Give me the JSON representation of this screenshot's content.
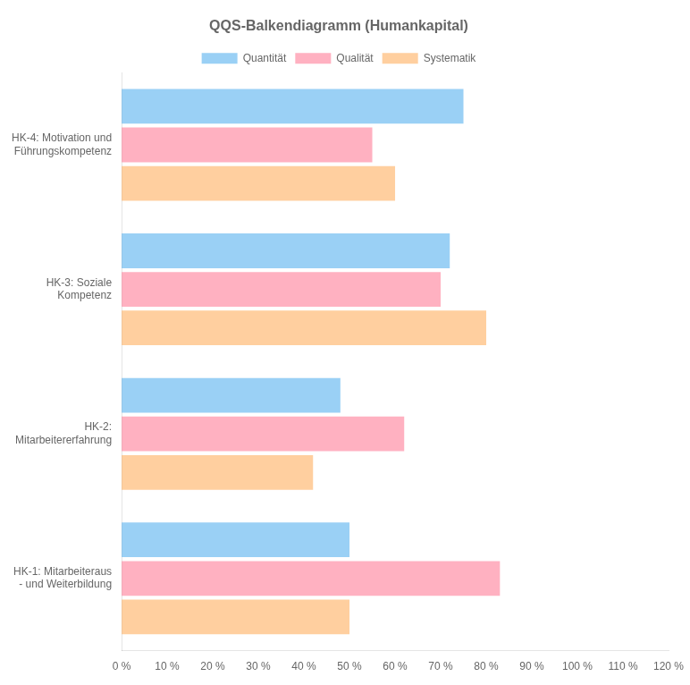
{
  "chart_data": {
    "type": "bar",
    "orientation": "horizontal",
    "title": "QQS-Balkendiagramm (Humankapital)",
    "categories": [
      "HK-1: Mitarbeiteraus\n- und Weiterbildung",
      "HK-2:\nMitarbeitererfahrung",
      "HK-3: Soziale\nKompetenz",
      "HK-4: Motivation und\nFührungskompetenz"
    ],
    "series": [
      {
        "name": "Quantität",
        "values": [
          50,
          48,
          72,
          75
        ]
      },
      {
        "name": "Qualität",
        "values": [
          83,
          62,
          70,
          55
        ]
      },
      {
        "name": "Systematik",
        "values": [
          50,
          42,
          80,
          60
        ]
      }
    ],
    "xlim": [
      0,
      120
    ],
    "xticks": [
      {
        "value": 0,
        "label": "0 %"
      },
      {
        "value": 10,
        "label": "10 %"
      },
      {
        "value": 20,
        "label": "20 %"
      },
      {
        "value": 30,
        "label": "30 %"
      },
      {
        "value": 40,
        "label": "40 %"
      },
      {
        "value": 50,
        "label": "50 %"
      },
      {
        "value": 60,
        "label": "60 %"
      },
      {
        "value": 70,
        "label": "70 %"
      },
      {
        "value": 80,
        "label": "80 %"
      },
      {
        "value": 90,
        "label": "90 %"
      },
      {
        "value": 100,
        "label": "100 %"
      },
      {
        "value": 110,
        "label": "110 %"
      },
      {
        "value": 120,
        "label": "120 %"
      }
    ],
    "grid": false,
    "legend": "top"
  }
}
